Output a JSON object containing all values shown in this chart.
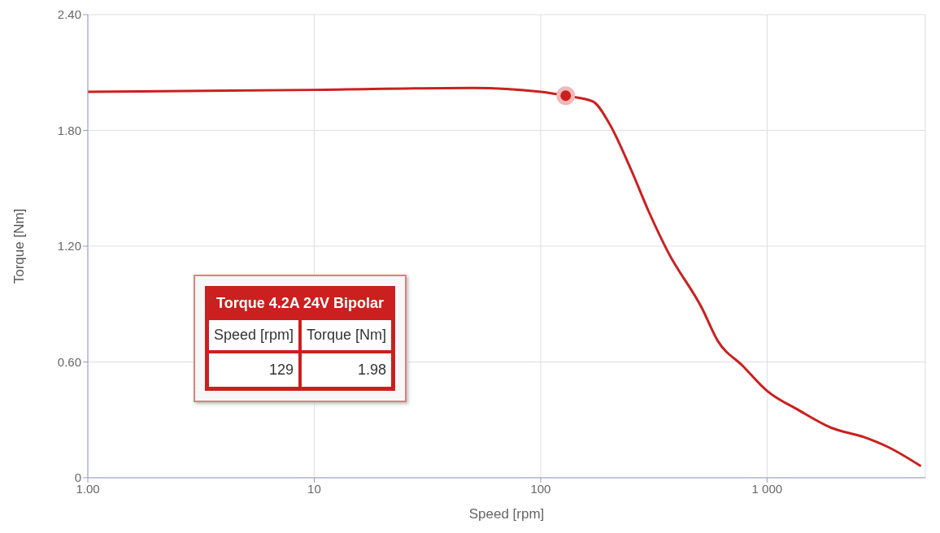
{
  "chart_data": {
    "type": "line",
    "xlabel": "Speed [rpm]",
    "ylabel": "Torque [Nm]",
    "x": [
      1,
      10,
      50,
      100,
      129,
      170,
      200,
      250,
      300,
      365,
      515,
      605,
      780,
      1000,
      1380,
      1910,
      2690,
      3410,
      4780
    ],
    "series": [
      {
        "name": "Torque 4.2A 24V Bipolar",
        "color": "#cc1f1f",
        "values": [
          2.0,
          2.01,
          2.02,
          2.0,
          1.98,
          1.95,
          1.84,
          1.6,
          1.38,
          1.17,
          0.88,
          0.71,
          0.58,
          0.45,
          0.35,
          0.26,
          0.21,
          0.16,
          0.06
        ]
      },
      {
        "type": "scatter",
        "marker": "circle",
        "color": "#cc1f1f",
        "x": [
          129
        ],
        "values": [
          1.98
        ]
      }
    ],
    "log": "x",
    "xlim": [
      1,
      5000
    ],
    "xticks": [
      {
        "value": 1,
        "label": "1.00"
      },
      10,
      100,
      {
        "value": 1000,
        "label": "1 000"
      }
    ],
    "ylim": [
      0,
      2.4
    ],
    "yticks": [
      0,
      {
        "value": 0.6,
        "label": "0.60"
      },
      {
        "value": 1.2,
        "label": "1.20"
      },
      {
        "value": 1.8,
        "label": "1.80"
      },
      {
        "value": 2.4,
        "label": "2.40"
      }
    ],
    "grid": true,
    "legend": false,
    "marker": "none",
    "line_style": "solid",
    "annotations": [
      "Speed [rpm]",
      "Torque [Nm]",
      "129",
      "1.98"
    ]
  }
}
